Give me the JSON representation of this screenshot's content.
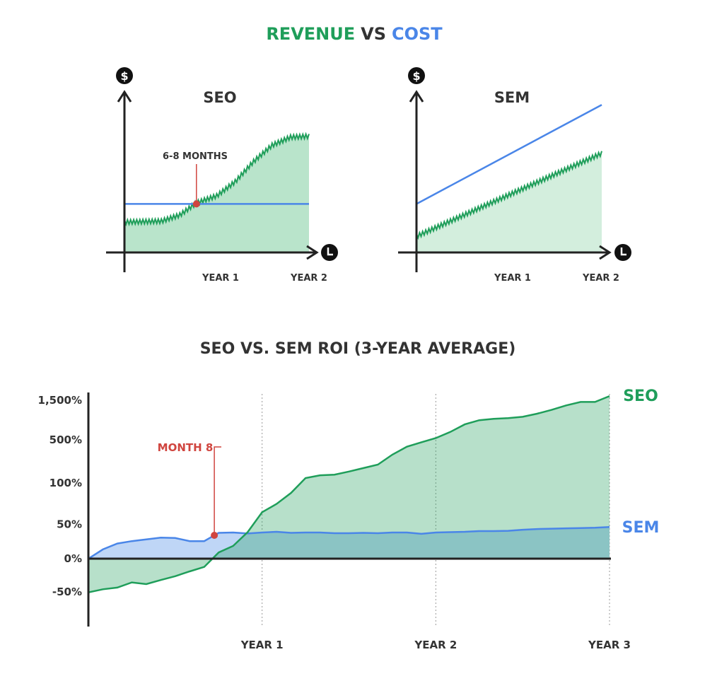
{
  "colors": {
    "revenue": "#1f9e5a",
    "revenue_fill": "#b9e4cb",
    "revenue_fill_light": "#d3eedd",
    "cost": "#4a86e8",
    "cost_fill": "#bfd6f6",
    "overlap_fill": "#7cbcbb",
    "annotation": "#d0453f",
    "axis": "#222222",
    "text": "#333333"
  },
  "header": {
    "title_part1": "REVENUE",
    "title_vs": "VS",
    "title_part2": "COST"
  },
  "chart_data": [
    {
      "type": "area",
      "title": "SEO",
      "y_axis_icon": "dollar-icon",
      "x_axis_icon": "clock-icon",
      "x_ticks": [
        "YEAR 1",
        "YEAR 2"
      ],
      "annotation": {
        "label": "6-8 MONTHS",
        "x": 0.39
      },
      "series": [
        {
          "role": "revenue",
          "style": "filled-jagged",
          "x": [
            0,
            0.2,
            0.3,
            0.39,
            0.5,
            0.6,
            0.7,
            0.8,
            0.9,
            1.0
          ],
          "values": [
            0.3,
            0.31,
            0.37,
            0.49,
            0.56,
            0.7,
            0.9,
            1.06,
            1.14,
            1.15
          ]
        },
        {
          "role": "cost",
          "style": "line",
          "x": [
            0,
            1.0
          ],
          "values": [
            0.48,
            0.48
          ]
        }
      ]
    },
    {
      "type": "area",
      "title": "SEM",
      "y_axis_icon": "dollar-icon",
      "x_axis_icon": "clock-icon",
      "x_ticks": [
        "YEAR 1",
        "YEAR 2"
      ],
      "series": [
        {
          "role": "revenue",
          "style": "filled-jagged",
          "x": [
            0,
            1.0
          ],
          "values": [
            0.16,
            0.98
          ]
        },
        {
          "role": "cost",
          "style": "line",
          "x": [
            0,
            1.0
          ],
          "values": [
            0.48,
            1.46
          ]
        }
      ]
    },
    {
      "type": "area",
      "title": "SEO VS. SEM ROI (3-YEAR AVERAGE)",
      "y_ticks": [
        "1,500%",
        "500%",
        "100%",
        "50%",
        "0%",
        "-50%"
      ],
      "x_ticks": [
        "YEAR 1",
        "YEAR 2",
        "YEAR 3"
      ],
      "annotation": {
        "label": "MONTH 8",
        "month": 8.7
      },
      "series": [
        {
          "name": "SEO",
          "months": [
            0,
            1,
            2,
            3,
            4,
            5,
            6,
            7,
            8,
            9,
            10,
            11,
            12,
            13,
            14,
            15,
            16,
            17,
            18,
            19,
            20,
            21,
            22,
            23,
            24,
            25,
            26,
            27,
            28,
            29,
            30,
            31,
            32,
            33,
            34,
            35,
            36
          ],
          "values": [
            -0.98,
            -0.89,
            -0.84,
            -0.69,
            -0.74,
            -0.62,
            -0.51,
            -0.37,
            -0.24,
            0.18,
            0.37,
            0.77,
            1.35,
            1.59,
            1.91,
            2.34,
            2.42,
            2.44,
            2.53,
            2.63,
            2.73,
            3.02,
            3.25,
            3.38,
            3.5,
            3.68,
            3.9,
            4.02,
            4.06,
            4.08,
            4.12,
            4.21,
            4.32,
            4.45,
            4.55,
            4.55,
            4.72
          ]
        },
        {
          "name": "SEM",
          "months": [
            0,
            1,
            2,
            3,
            4,
            5,
            6,
            7,
            8,
            9,
            10,
            11,
            12,
            13,
            14,
            15,
            16,
            17,
            18,
            19,
            20,
            21,
            22,
            23,
            24,
            25,
            26,
            27,
            28,
            29,
            30,
            31,
            32,
            33,
            34,
            35,
            36
          ],
          "values": [
            0.0,
            0.27,
            0.44,
            0.51,
            0.56,
            0.61,
            0.6,
            0.51,
            0.51,
            0.75,
            0.76,
            0.73,
            0.76,
            0.78,
            0.75,
            0.76,
            0.76,
            0.74,
            0.74,
            0.75,
            0.74,
            0.76,
            0.76,
            0.72,
            0.76,
            0.77,
            0.78,
            0.8,
            0.8,
            0.81,
            0.84,
            0.86,
            0.87,
            0.88,
            0.89,
            0.9,
            0.92
          ]
        }
      ]
    }
  ]
}
